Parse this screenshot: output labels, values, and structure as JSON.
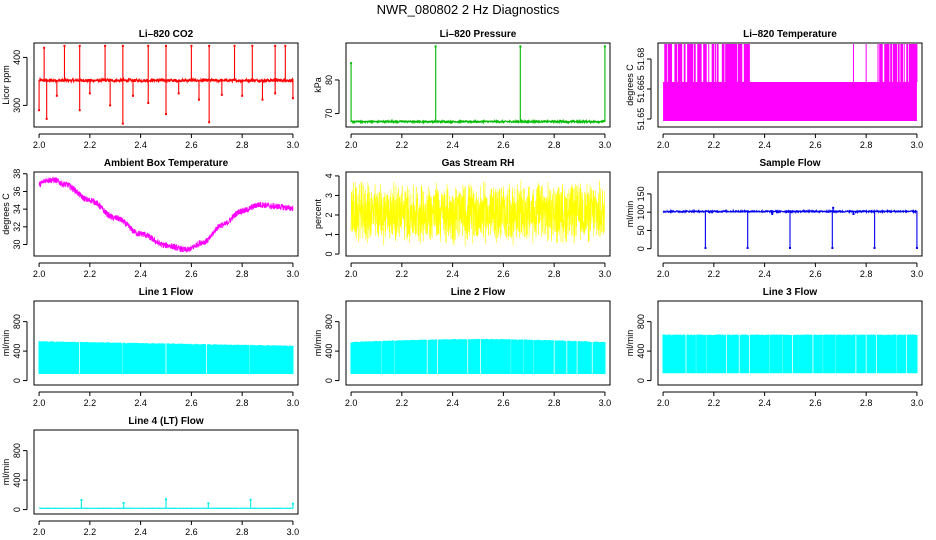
{
  "main_title": "NWR_080802  2 Hz Diagnostics",
  "chart_data": [
    {
      "type": "line",
      "title": "Li–820 CO2",
      "ylabel": "Licor ppm",
      "xlim": [
        1.98,
        3.02
      ],
      "ylim": [
        255,
        430
      ],
      "xticks": [
        "2.0",
        "2.2",
        "2.4",
        "2.6",
        "2.8",
        "3.0"
      ],
      "yticks": [
        {
          "v": 300,
          "label": "300"
        },
        {
          "v": 400,
          "label": "400"
        }
      ],
      "color": "#ff0000",
      "series": {
        "baseline": 352,
        "noise": 3,
        "upspikes": [
          [
            2.02,
            420
          ],
          [
            2.1,
            424
          ],
          [
            2.16,
            424
          ],
          [
            2.26,
            424
          ],
          [
            2.33,
            424
          ],
          [
            2.43,
            424
          ],
          [
            2.5,
            424
          ],
          [
            2.6,
            424
          ],
          [
            2.67,
            424
          ],
          [
            2.77,
            424
          ],
          [
            2.84,
            424
          ],
          [
            2.93,
            424
          ],
          [
            2.97,
            424
          ]
        ],
        "downspikes": [
          [
            2.0,
            290
          ],
          [
            2.03,
            272
          ],
          [
            2.07,
            320
          ],
          [
            2.16,
            290
          ],
          [
            2.2,
            325
          ],
          [
            2.28,
            300
          ],
          [
            2.33,
            262
          ],
          [
            2.37,
            320
          ],
          [
            2.43,
            305
          ],
          [
            2.5,
            282
          ],
          [
            2.55,
            325
          ],
          [
            2.63,
            312
          ],
          [
            2.67,
            265
          ],
          [
            2.72,
            322
          ],
          [
            2.8,
            320
          ],
          [
            2.88,
            312
          ],
          [
            2.93,
            325
          ],
          [
            3.0,
            315
          ]
        ]
      }
    },
    {
      "type": "line",
      "title": "Li–820 Pressure",
      "ylabel": "kPa",
      "xlim": [
        1.98,
        3.02
      ],
      "ylim": [
        66,
        91
      ],
      "xticks": [
        "2.0",
        "2.2",
        "2.4",
        "2.6",
        "2.8",
        "3.0"
      ],
      "yticks": [
        {
          "v": 70,
          "label": "70"
        },
        {
          "v": 80,
          "label": "80"
        }
      ],
      "color": "#00bb00",
      "series": {
        "baseline": 67.6,
        "noise": 0.25,
        "upspikes": [
          [
            2.0,
            85
          ],
          [
            2.333,
            90
          ],
          [
            2.667,
            90
          ],
          [
            3.0,
            90
          ]
        ],
        "downspikes": []
      }
    },
    {
      "type": "line",
      "title": "Li–820 Temperature",
      "ylabel": "degrees C",
      "xlim": [
        1.98,
        3.02
      ],
      "ylim": [
        51.646,
        51.688
      ],
      "xticks": [
        "2.0",
        "2.2",
        "2.4",
        "2.6",
        "2.8",
        "3.0"
      ],
      "yticks": [
        {
          "v": 51.65,
          "label": "51.65"
        },
        {
          "v": 51.665,
          "label": "51.665"
        },
        {
          "v": 51.68,
          "label": "51.68"
        }
      ],
      "color": "#ff00ff",
      "series": {
        "low": 51.649,
        "mid": 51.6685,
        "high": 51.6875,
        "bursts": [
          [
            2.0,
            2.34
          ],
          [
            2.84,
            3.0
          ]
        ],
        "singles": [
          2.75,
          2.8
        ]
      }
    },
    {
      "type": "line",
      "title": "Ambient Box Temperature",
      "ylabel": "degrees C",
      "xlim": [
        1.98,
        3.02
      ],
      "ylim": [
        28.7,
        38.2
      ],
      "xticks": [
        "2.0",
        "2.2",
        "2.4",
        "2.6",
        "2.8",
        "3.0"
      ],
      "yticks": [
        {
          "v": 30,
          "label": "30"
        },
        {
          "v": 32,
          "label": "32"
        },
        {
          "v": 34,
          "label": "34"
        },
        {
          "v": 36,
          "label": "36"
        },
        {
          "v": 38,
          "label": "38"
        }
      ],
      "color": "#ff00ff",
      "series": {
        "knots": [
          [
            2.0,
            36.8
          ],
          [
            2.03,
            37.3
          ],
          [
            2.06,
            37.3
          ],
          [
            2.1,
            36.8
          ],
          [
            2.2,
            35.0
          ],
          [
            2.3,
            33.0
          ],
          [
            2.4,
            31.2
          ],
          [
            2.5,
            29.9
          ],
          [
            2.58,
            29.4
          ],
          [
            2.65,
            30.3
          ],
          [
            2.72,
            32.2
          ],
          [
            2.8,
            33.8
          ],
          [
            2.87,
            34.5
          ],
          [
            2.93,
            34.3
          ],
          [
            3.0,
            34.1
          ]
        ],
        "noise": 0.35
      }
    },
    {
      "type": "line",
      "title": "Gas Stream RH",
      "ylabel": "percent",
      "xlim": [
        1.98,
        3.02
      ],
      "ylim": [
        -0.1,
        4.2
      ],
      "xticks": [
        "2.0",
        "2.2",
        "2.4",
        "2.6",
        "2.8",
        "3.0"
      ],
      "yticks": [
        {
          "v": 0,
          "label": "0"
        },
        {
          "v": 1,
          "label": "1"
        },
        {
          "v": 2,
          "label": "2"
        },
        {
          "v": 3,
          "label": "3"
        },
        {
          "v": 4,
          "label": "4"
        }
      ],
      "color": "#ffff00",
      "series": {
        "center": 2.1,
        "amp": 1.7
      }
    },
    {
      "type": "line",
      "title": "Sample Flow",
      "ylabel": "ml/min",
      "xlim": [
        1.98,
        3.02
      ],
      "ylim": [
        -20,
        210
      ],
      "xticks": [
        "2.0",
        "2.2",
        "2.4",
        "2.6",
        "2.8",
        "3.0"
      ],
      "yticks": [
        {
          "v": 0,
          "label": "0"
        },
        {
          "v": 50,
          "label": "50"
        },
        {
          "v": 100,
          "label": "100"
        },
        {
          "v": 150,
          "label": "150"
        }
      ],
      "color": "#0000ee",
      "series": {
        "baseline": 102,
        "noise": 2,
        "upspikes": [
          [
            2.67,
            112
          ]
        ],
        "downspikes": [
          [
            2.167,
            2
          ],
          [
            2.333,
            2
          ],
          [
            2.5,
            2
          ],
          [
            2.667,
            2
          ],
          [
            2.833,
            2
          ],
          [
            3.0,
            2
          ],
          [
            2.43,
            95
          ],
          [
            2.75,
            95
          ]
        ]
      }
    },
    {
      "type": "area",
      "title": "Line 1 Flow",
      "ylabel": "ml/min",
      "xlim": [
        1.98,
        3.02
      ],
      "ylim": [
        -60,
        1080
      ],
      "xticks": [
        "2.0",
        "2.2",
        "2.4",
        "2.6",
        "2.8",
        "3.0"
      ],
      "yticks": [
        {
          "v": 0,
          "label": "0"
        },
        {
          "v": 400,
          "label": "400"
        },
        {
          "v": 800,
          "label": "800"
        }
      ],
      "color": "#00ffff",
      "series": {
        "low": 90,
        "top_start": 530,
        "top_end": 470,
        "gaps": [
          2.16,
          2.33,
          2.5,
          2.66,
          2.83
        ]
      }
    },
    {
      "type": "area",
      "title": "Line 2 Flow",
      "ylabel": "ml/min",
      "xlim": [
        1.98,
        3.02
      ],
      "ylim": [
        -60,
        1080
      ],
      "xticks": [
        "2.0",
        "2.2",
        "2.4",
        "2.6",
        "2.8",
        "3.0"
      ],
      "yticks": [
        {
          "v": 0,
          "label": "0"
        },
        {
          "v": 400,
          "label": "400"
        },
        {
          "v": 800,
          "label": "800"
        }
      ],
      "color": "#00ffff",
      "series": {
        "low": 90,
        "top_start": 520,
        "top_end": 520,
        "top_bulge": 40,
        "gaps": [
          2.12,
          2.17,
          2.3,
          2.34,
          2.46,
          2.51,
          2.63,
          2.68,
          2.72,
          2.8,
          2.85,
          2.89,
          2.95
        ]
      }
    },
    {
      "type": "area",
      "title": "Line 3 Flow",
      "ylabel": "ml/min",
      "xlim": [
        1.98,
        3.02
      ],
      "ylim": [
        -60,
        1080
      ],
      "xticks": [
        "2.0",
        "2.2",
        "2.4",
        "2.6",
        "2.8",
        "3.0"
      ],
      "yticks": [
        {
          "v": 0,
          "label": "0"
        },
        {
          "v": 400,
          "label": "400"
        },
        {
          "v": 800,
          "label": "800"
        }
      ],
      "color": "#00ffff",
      "series": {
        "low": 100,
        "top_start": 620,
        "top_end": 620,
        "gaps": [
          2.09,
          2.13,
          2.17,
          2.25,
          2.3,
          2.34,
          2.42,
          2.47,
          2.51,
          2.59,
          2.63,
          2.68,
          2.76,
          2.8,
          2.84,
          2.92,
          2.96
        ]
      }
    },
    {
      "type": "line",
      "title": "Line 4 (LT) Flow",
      "ylabel": "ml/min",
      "xlim": [
        1.98,
        3.02
      ],
      "ylim": [
        -60,
        1080
      ],
      "xticks": [
        "2.0",
        "2.2",
        "2.4",
        "2.6",
        "2.8",
        "3.0"
      ],
      "yticks": [
        {
          "v": 0,
          "label": "0"
        },
        {
          "v": 400,
          "label": "400"
        },
        {
          "v": 800,
          "label": "800"
        }
      ],
      "color": "#00eeee",
      "series": {
        "baseline": 18,
        "noise": 2,
        "upspikes": [
          [
            2.167,
            130
          ],
          [
            2.333,
            90
          ],
          [
            2.5,
            140
          ],
          [
            2.667,
            85
          ],
          [
            2.833,
            135
          ],
          [
            3.0,
            80
          ]
        ],
        "downspikes": []
      }
    }
  ]
}
